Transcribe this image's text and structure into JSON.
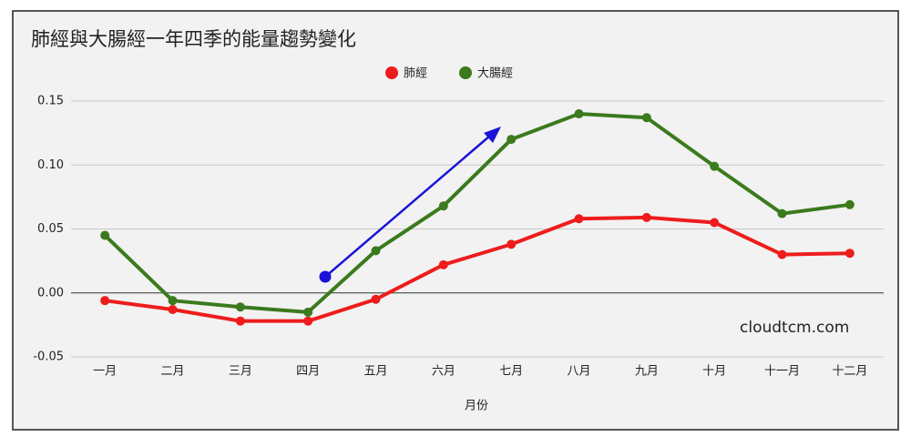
{
  "chart_data": {
    "type": "line",
    "title": "肺經與大腸經一年四季的能量趨勢變化",
    "x_label": "月份",
    "annotation": "cloudtcm.com",
    "categories": [
      "一月",
      "二月",
      "三月",
      "四月",
      "五月",
      "六月",
      "七月",
      "八月",
      "九月",
      "十月",
      "十一月",
      "十二月"
    ],
    "series": [
      {
        "name": "肺經",
        "color": "#ee1c1c",
        "values": [
          -0.006,
          -0.013,
          -0.022,
          -0.022,
          -0.005,
          0.022,
          0.038,
          0.058,
          0.059,
          0.055,
          0.03,
          0.031
        ]
      },
      {
        "name": "大腸經",
        "color": "#3b7a1d",
        "values": [
          0.045,
          -0.006,
          -0.011,
          -0.015,
          0.033,
          0.068,
          0.12,
          0.14,
          0.137,
          0.099,
          0.062,
          0.069
        ]
      }
    ],
    "ylim": [
      -0.05,
      0.15
    ],
    "yticks": [
      -0.05,
      {
        "value": 0,
        "label": "0.00"
      },
      0.05,
      {
        "value": 0.1,
        "label": "0.10"
      },
      0.15
    ],
    "grid": true,
    "legend_position": "top"
  }
}
